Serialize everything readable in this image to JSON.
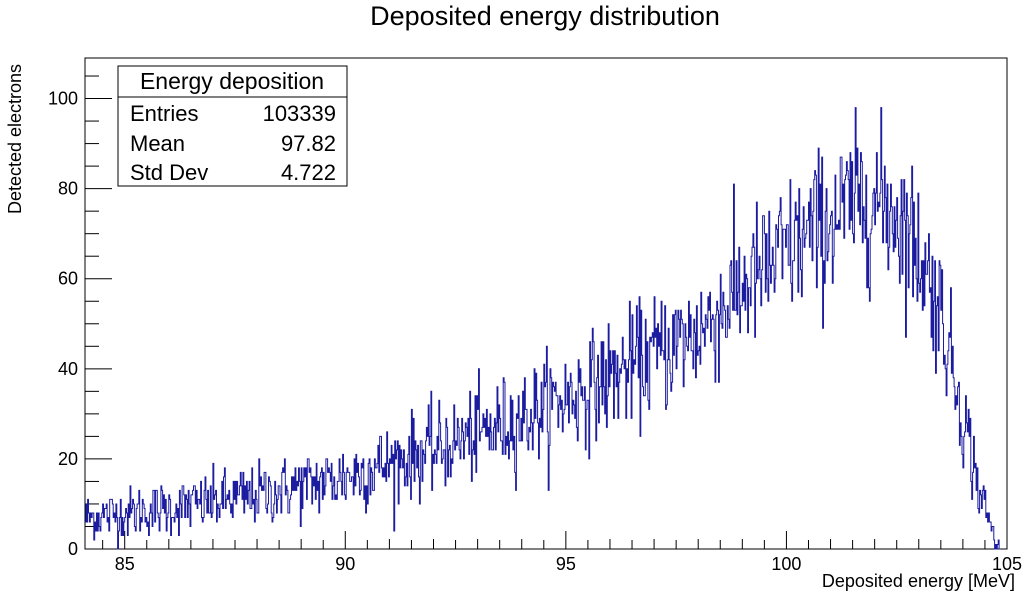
{
  "chart_data": {
    "type": "histogram",
    "title": "Deposited energy distribution",
    "xlabel": "Deposited energy [MeV]",
    "ylabel": "Detected electrons",
    "xlim": [
      84.1,
      105.0
    ],
    "ylim": [
      0,
      109
    ],
    "x_ticks": [
      85,
      90,
      95,
      100,
      105
    ],
    "y_ticks": [
      0,
      20,
      40,
      60,
      80,
      100
    ],
    "line_color": "#1c1ca0",
    "grid": false,
    "stats_box": {
      "title": "Energy deposition",
      "rows": [
        {
          "label": "Entries",
          "value": "103339"
        },
        {
          "label": "Mean",
          "value": "97.82"
        },
        {
          "label": "Std Dev",
          "value": "4.722"
        }
      ]
    },
    "envelope": {
      "description": "approximate bin-content trend (energy MeV, counts)",
      "points": [
        [
          84.1,
          7
        ],
        [
          86.0,
          9
        ],
        [
          88.0,
          12
        ],
        [
          90.0,
          16
        ],
        [
          92.0,
          22
        ],
        [
          94.0,
          29
        ],
        [
          96.0,
          38
        ],
        [
          98.0,
          48
        ],
        [
          99.0,
          58
        ],
        [
          100.0,
          66
        ],
        [
          101.0,
          73
        ],
        [
          101.8,
          78
        ],
        [
          102.5,
          75
        ],
        [
          103.0,
          66
        ],
        [
          103.5,
          53
        ],
        [
          104.0,
          30
        ],
        [
          104.4,
          12
        ],
        [
          104.7,
          3
        ],
        [
          104.8,
          0
        ]
      ],
      "bin_width": 0.02,
      "noise_sigma_scale": 1.0,
      "peak_max": 104
    }
  }
}
